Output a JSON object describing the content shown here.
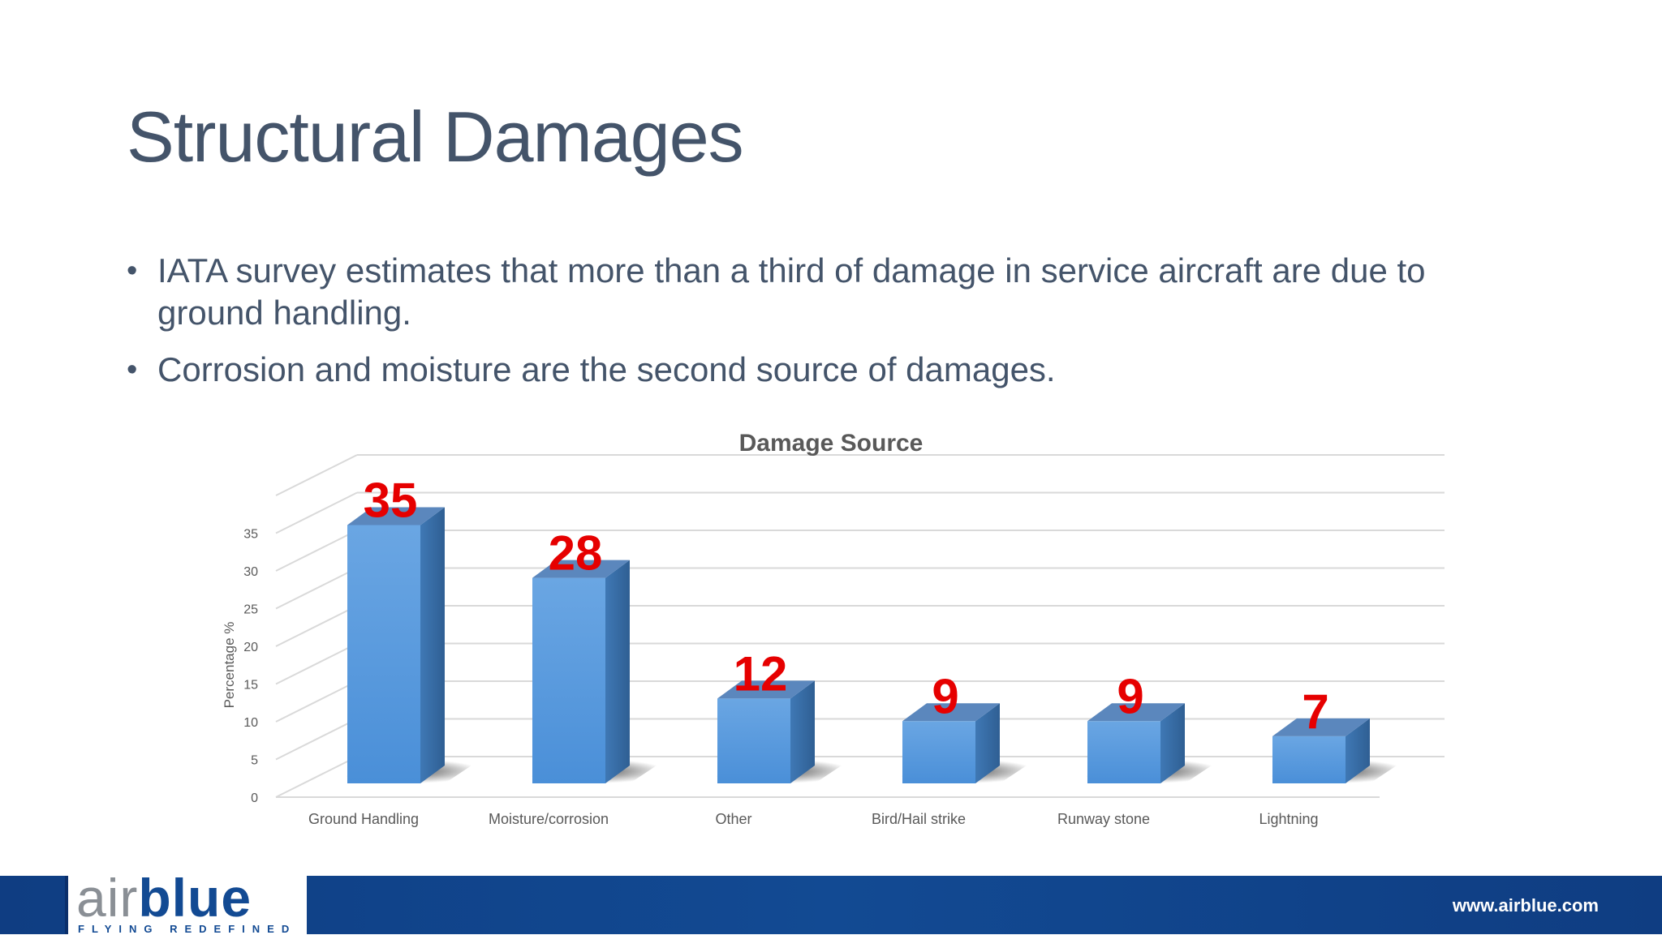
{
  "slide": {
    "title": "Structural Damages",
    "bullets": [
      "IATA survey estimates that more than a third of damage in service aircraft are due to ground handling.",
      "Corrosion and moisture are the second source of damages."
    ],
    "bullet_glyph": "•"
  },
  "footer": {
    "logo_air": "air",
    "logo_blue": "blue",
    "logo_tagline": "FLYING REDEFINED",
    "url": "www.airblue.com"
  },
  "chart_data": {
    "type": "bar",
    "title": "Damage Source",
    "ylabel": "Percentage %",
    "xlabel": "",
    "categories": [
      "Ground Handling",
      "Moisture/corrosion",
      "Other",
      "Bird/Hail strike",
      "Runway stone",
      "Lightning"
    ],
    "values": [
      35,
      28,
      12,
      9,
      9,
      7
    ],
    "data_labels": [
      "35",
      "28",
      "12",
      "9",
      "9",
      "7"
    ],
    "yticks": [
      "0",
      "5",
      "10",
      "15",
      "20",
      "25",
      "30",
      "35"
    ],
    "ylim": [
      0,
      35
    ],
    "grid": true,
    "style": "3d-column",
    "colors": {
      "bar_front_top": "#6aa6e3",
      "bar_front_bottom": "#4a8fd8",
      "bar_side": "#3a6ea8",
      "bar_top": "#5b87bd",
      "label": "#e60000",
      "grid": "#d9d9d9",
      "axis_text": "#595959"
    }
  }
}
